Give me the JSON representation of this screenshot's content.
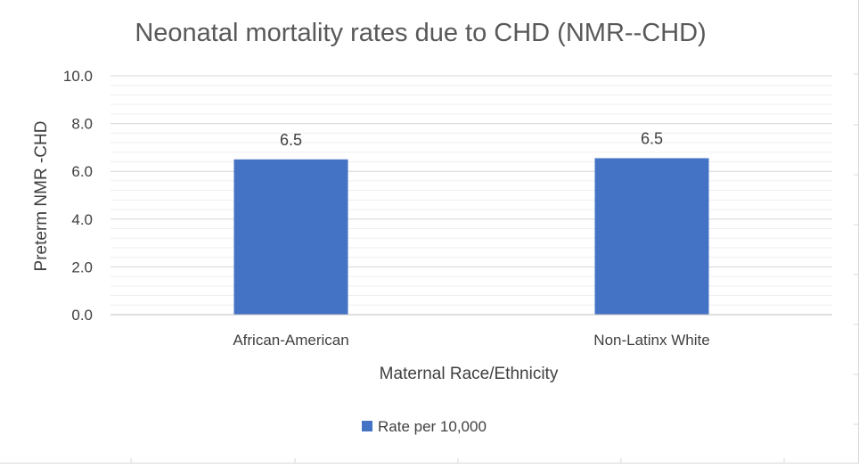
{
  "chart_data": {
    "type": "bar",
    "title": "Neonatal mortality rates due to CHD (NMR--CHD)",
    "xlabel": "Maternal Race/Ethnicity",
    "ylabel": "Preterm NMR -CHD",
    "categories": [
      "African-American",
      "Non-Latinx White"
    ],
    "series": [
      {
        "name": "Rate per 10,000",
        "values": [
          6.5,
          6.55
        ],
        "data_labels": [
          "6.5",
          "6.5"
        ],
        "color": "#4472c4"
      }
    ],
    "ylim": [
      0,
      10
    ],
    "yticks": [
      "0.0",
      "2.0",
      "4.0",
      "6.0",
      "8.0",
      "10.0"
    ],
    "grid": true,
    "minor_grid": true,
    "legend_position": "bottom"
  },
  "colors": {
    "bar": "#4472c4",
    "major_grid": "#d9d9d9",
    "minor_grid": "#efefef",
    "axis": "#bfbfbf",
    "title": "#595959",
    "text": "#404040"
  }
}
